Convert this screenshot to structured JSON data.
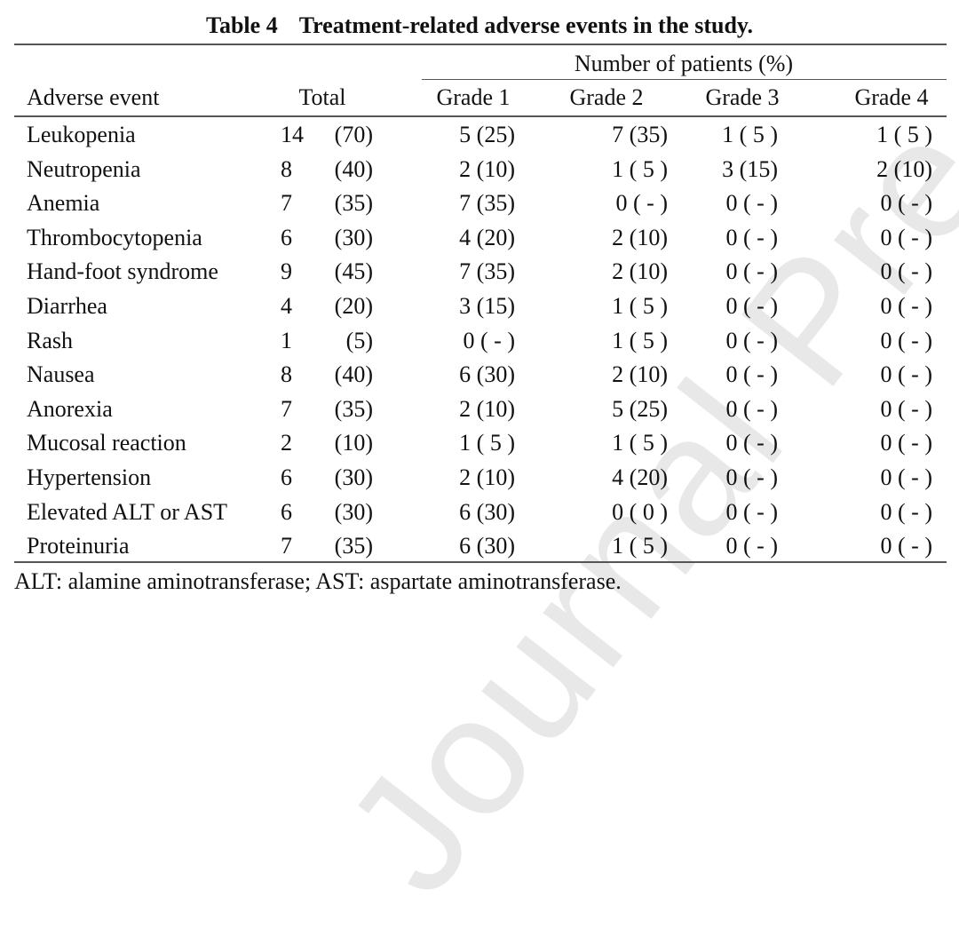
{
  "title": {
    "label": "Table 4",
    "text": "Treatment-related adverse events in the study."
  },
  "watermark": "Journal Pre-proof",
  "header": {
    "group": "Number of patients (%)",
    "columns": [
      "Adverse event",
      "Total",
      "Grade 1",
      "Grade 2",
      "Grade 3",
      "Grade 4"
    ]
  },
  "rows": [
    {
      "event": "Leukopenia",
      "total_n": "14",
      "total_pct": "(70)",
      "g1": "5 (25)",
      "g2": "7 (35)",
      "g3": "1 ( 5 )",
      "g4": "1 ( 5 )"
    },
    {
      "event": "Neutropenia",
      "total_n": "8",
      "total_pct": "(40)",
      "g1": "2 (10)",
      "g2": "1 ( 5 )",
      "g3": "3 (15)",
      "g4": "2 (10)"
    },
    {
      "event": "Anemia",
      "total_n": "7",
      "total_pct": "(35)",
      "g1": "7 (35)",
      "g2": "0 ( - )",
      "g3": "0 ( - )",
      "g4": "0 ( - )"
    },
    {
      "event": "Thrombocytopenia",
      "total_n": "6",
      "total_pct": "(30)",
      "g1": "4 (20)",
      "g2": "2 (10)",
      "g3": "0 ( - )",
      "g4": "0 ( - )"
    },
    {
      "event": "Hand-foot syndrome",
      "total_n": "9",
      "total_pct": "(45)",
      "g1": "7 (35)",
      "g2": "2 (10)",
      "g3": "0 ( - )",
      "g4": "0 ( - )"
    },
    {
      "event": "Diarrhea",
      "total_n": "4",
      "total_pct": "(20)",
      "g1": "3 (15)",
      "g2": "1 ( 5 )",
      "g3": "0 ( - )",
      "g4": "0 ( - )"
    },
    {
      "event": "Rash",
      "total_n": "1",
      "total_pct": "(5)",
      "g1": "0 ( - )",
      "g2": "1 ( 5 )",
      "g3": "0 ( - )",
      "g4": "0 ( - )"
    },
    {
      "event": "Nausea",
      "total_n": "8",
      "total_pct": "(40)",
      "g1": "6 (30)",
      "g2": "2 (10)",
      "g3": "0 ( - )",
      "g4": "0 ( - )"
    },
    {
      "event": "Anorexia",
      "total_n": "7",
      "total_pct": "(35)",
      "g1": "2 (10)",
      "g2": "5 (25)",
      "g3": "0 ( - )",
      "g4": "0 ( - )"
    },
    {
      "event": "Mucosal reaction",
      "total_n": "2",
      "total_pct": "(10)",
      "g1": "1 ( 5 )",
      "g2": "1 ( 5 )",
      "g3": "0 ( - )",
      "g4": "0 ( - )"
    },
    {
      "event": "Hypertension",
      "total_n": "6",
      "total_pct": "(30)",
      "g1": "2 (10)",
      "g2": "4 (20)",
      "g3": "0 ( - )",
      "g4": "0 ( - )"
    },
    {
      "event": "Elevated ALT or AST",
      "total_n": "6",
      "total_pct": "(30)",
      "g1": "6 (30)",
      "g2": "0 ( 0 )",
      "g3": "0 ( - )",
      "g4": "0 ( - )"
    },
    {
      "event": "Proteinuria",
      "total_n": "7",
      "total_pct": "(35)",
      "g1": "6 (30)",
      "g2": "1 ( 5 )",
      "g3": "0 ( - )",
      "g4": "0 ( - )"
    }
  ],
  "footnote": "ALT: alamine aminotransferase; AST: aspartate aminotransferase."
}
